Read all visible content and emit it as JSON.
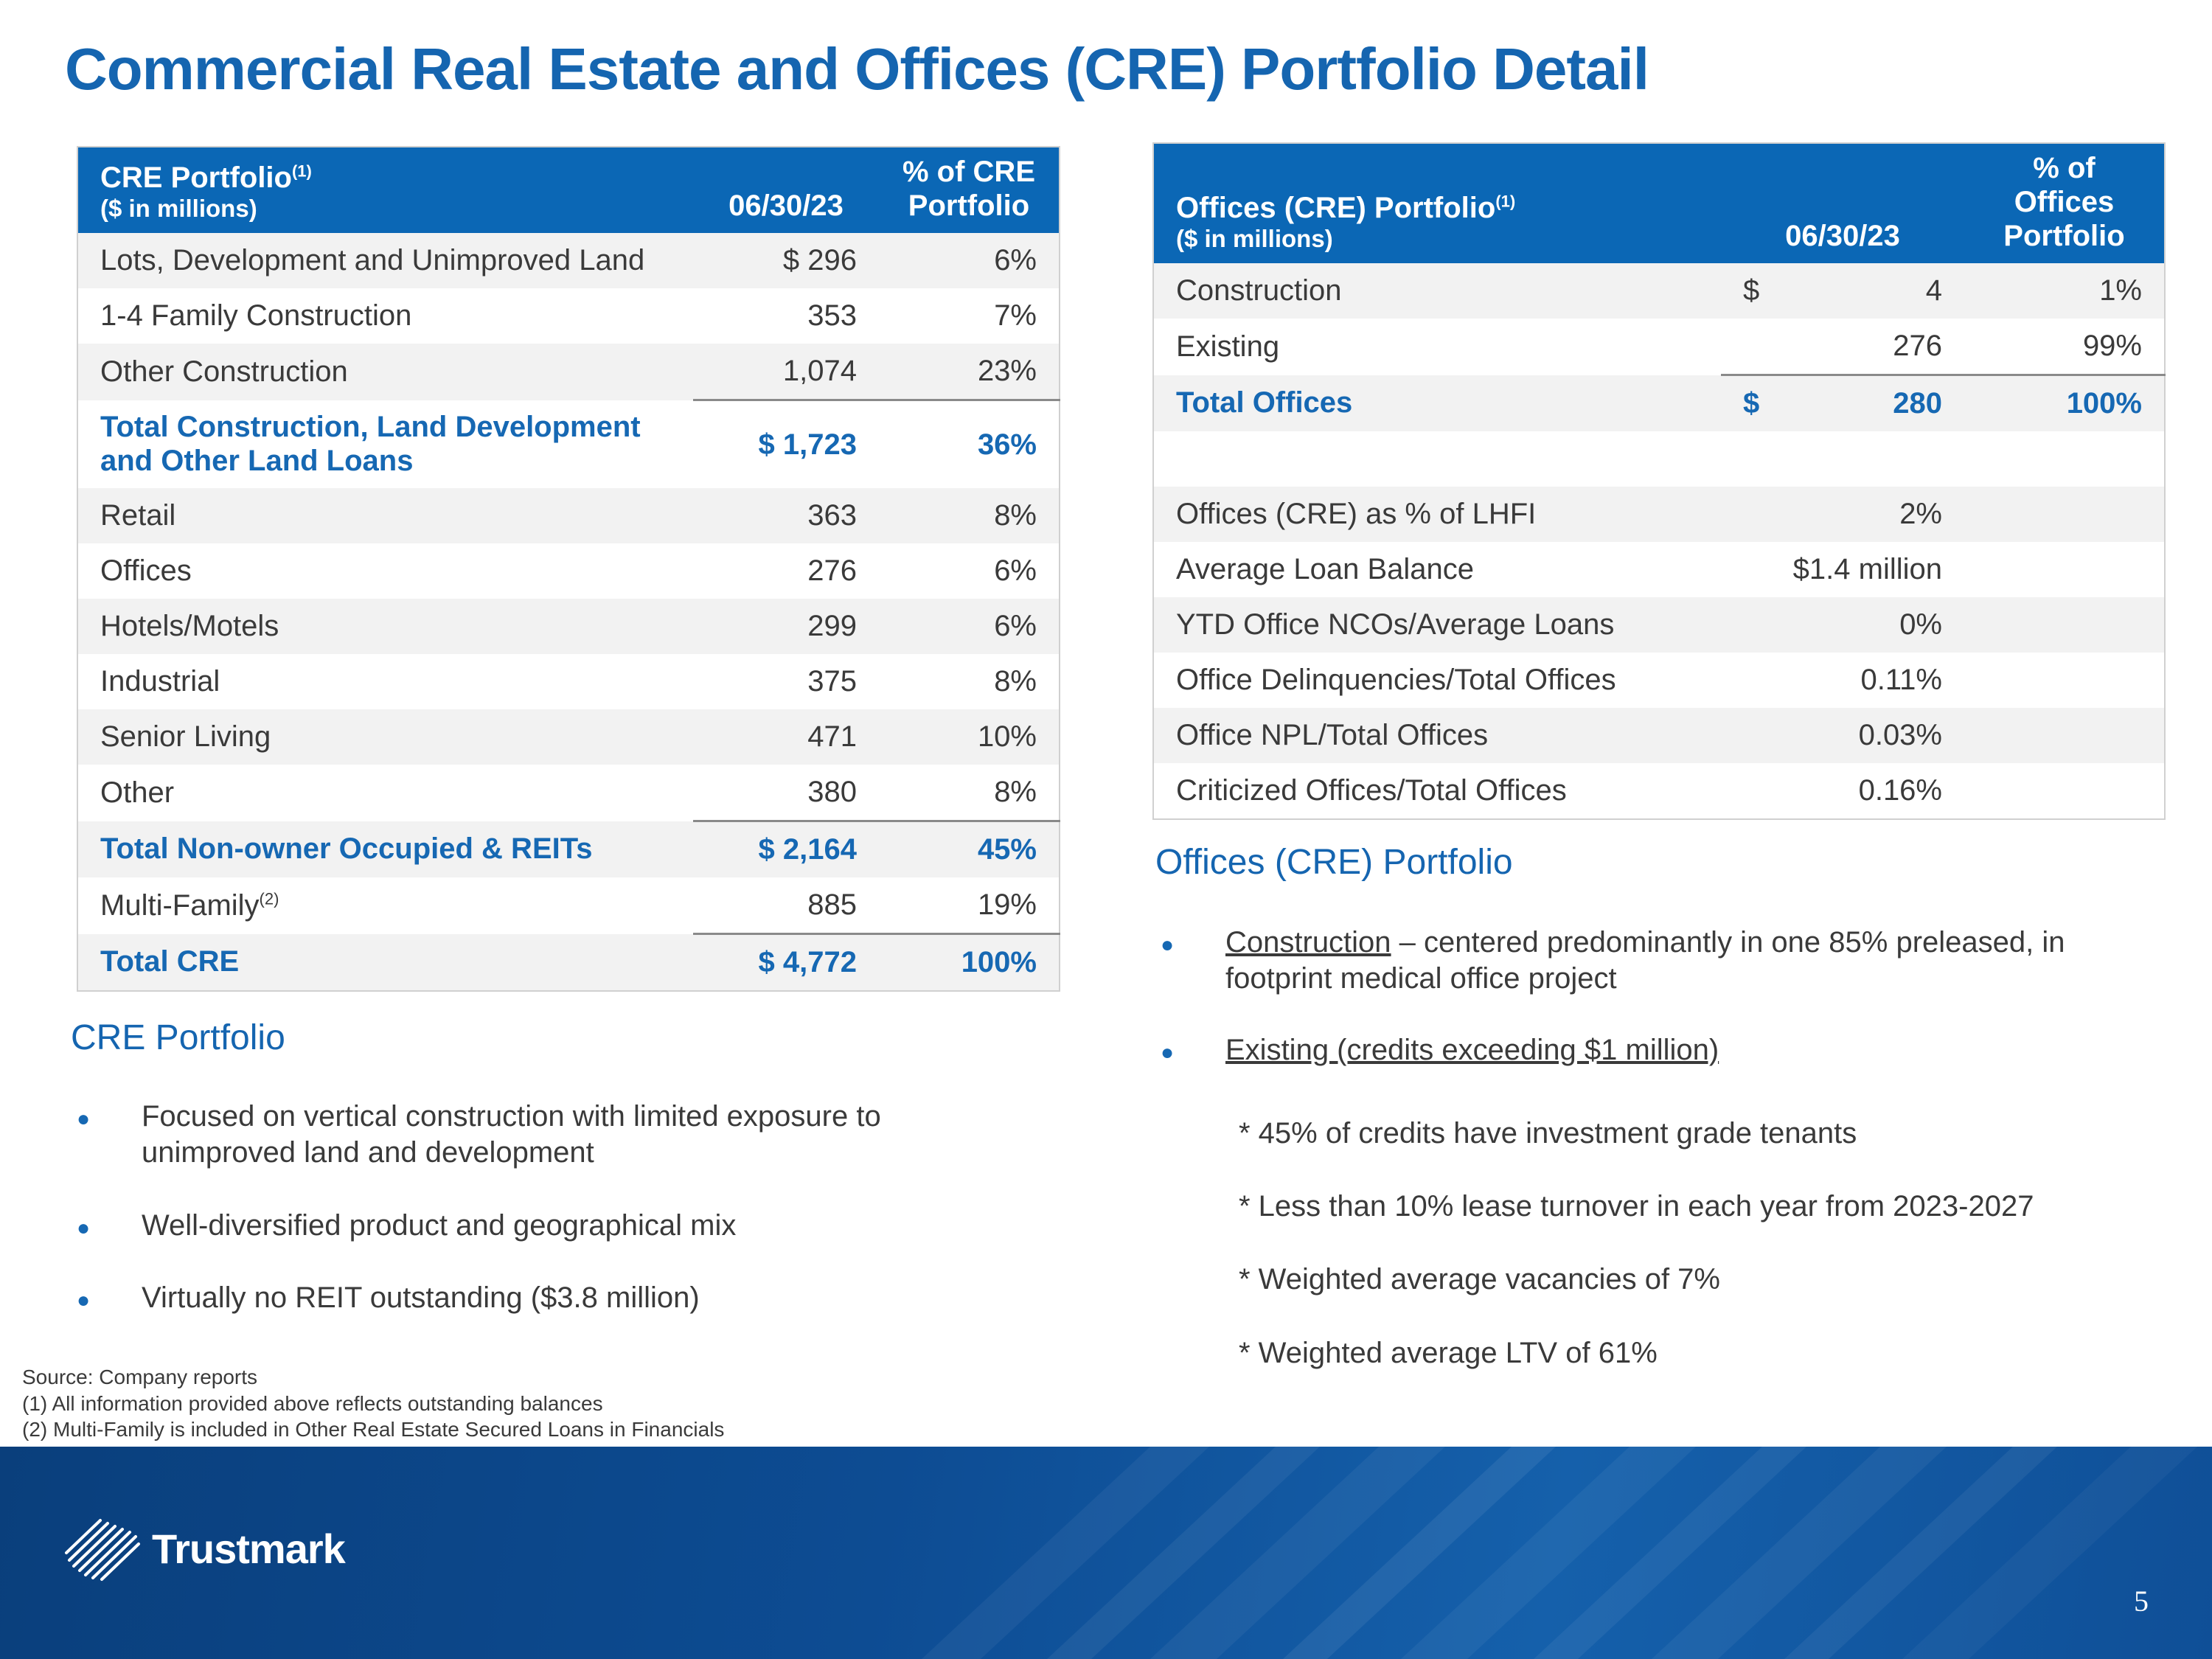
{
  "title": "Commercial Real Estate and Offices (CRE) Portfolio Detail",
  "cre_table": {
    "header": {
      "col1": "CRE Portfolio",
      "col1_sup": "(1)",
      "col1_sub": "($ in millions)",
      "col2": "06/30/23",
      "col3_line1": "% of CRE",
      "col3_line2": "Portfolio"
    },
    "rows": [
      {
        "label": "Lots, Development and Unimproved Land",
        "amount": "$ 296",
        "pct": "6%"
      },
      {
        "label": "1-4 Family Construction",
        "amount": "353",
        "pct": "7%"
      },
      {
        "label": "Other Construction",
        "amount": "1,074",
        "pct": "23%"
      },
      {
        "label": "Total Construction, Land Development and Other Land Loans",
        "amount": "$ 1,723",
        "pct": "36%"
      },
      {
        "label": "Retail",
        "amount": "363",
        "pct": "8%"
      },
      {
        "label": "Offices",
        "amount": "276",
        "pct": "6%"
      },
      {
        "label": "Hotels/Motels",
        "amount": "299",
        "pct": "6%"
      },
      {
        "label": "Industrial",
        "amount": "375",
        "pct": "8%"
      },
      {
        "label": "Senior Living",
        "amount": "471",
        "pct": "10%"
      },
      {
        "label": "Other",
        "amount": "380",
        "pct": "8%"
      },
      {
        "label": "Total Non-owner Occupied & REITs",
        "amount": "$ 2,164",
        "pct": "45%"
      },
      {
        "label": "Multi-Family",
        "label_sup": "(2)",
        "amount": "885",
        "pct": "19%"
      },
      {
        "label": "Total CRE",
        "amount": "$ 4,772",
        "pct": "100%"
      }
    ]
  },
  "offices_table": {
    "header": {
      "col1": "Offices (CRE) Portfolio",
      "col1_sup": "(1)",
      "col1_sub": "($ in millions)",
      "col2": "06/30/23",
      "col3_line1": "% of Offices",
      "col3_line2": "Portfolio"
    },
    "rows": [
      {
        "label": "Construction",
        "currency": "$",
        "amount": "4",
        "pct": "1%"
      },
      {
        "label": "Existing",
        "amount": "276",
        "pct": "99%"
      },
      {
        "label": "Total Offices",
        "currency": "$",
        "amount": "280",
        "pct": "100%"
      },
      {
        "label": "",
        "amount": "",
        "pct": ""
      },
      {
        "label": "Offices (CRE) as % of LHFI",
        "amount": "2%",
        "pct": ""
      },
      {
        "label": "Average Loan Balance",
        "amount": "$1.4 million",
        "pct": ""
      },
      {
        "label": "YTD Office NCOs/Average Loans",
        "amount": "0%",
        "pct": ""
      },
      {
        "label": "Office Delinquencies/Total Offices",
        "amount": "0.11%",
        "pct": ""
      },
      {
        "label": "Office NPL/Total Offices",
        "amount": "0.03%",
        "pct": ""
      },
      {
        "label": "Criticized Offices/Total Offices",
        "amount": "0.16%",
        "pct": ""
      }
    ]
  },
  "cre_portfolio_section": {
    "heading": "CRE Portfolio",
    "bullets": [
      "Focused on vertical construction with limited exposure to unimproved land and development",
      "Well-diversified product and geographical mix",
      "Virtually no REIT outstanding ($3.8 million)"
    ]
  },
  "offices_portfolio_section": {
    "heading": "Offices (CRE) Portfolio",
    "bullet1_link": "Construction",
    "bullet1_rest": " – centered predominantly in one 85% preleased, in footprint medical office project",
    "bullet2_link": "Existing (credits exceeding $1 million)",
    "sub_points": [
      "* 45% of credits have investment grade tenants",
      "*  Less than 10% lease turnover in each year from 2023-2027",
      "*  Weighted average vacancies of 7%",
      "*  Weighted average LTV of 61%"
    ]
  },
  "footnotes": [
    "Source: Company reports",
    "(1) All information provided above reflects outstanding balances",
    "(2) Multi-Family is included in Other Real Estate Secured  Loans in Financials"
  ],
  "brand": {
    "name": "Trustmark",
    "primary_color": "#1565b0",
    "band_color": "#0d4c93"
  },
  "page_number": "5"
}
